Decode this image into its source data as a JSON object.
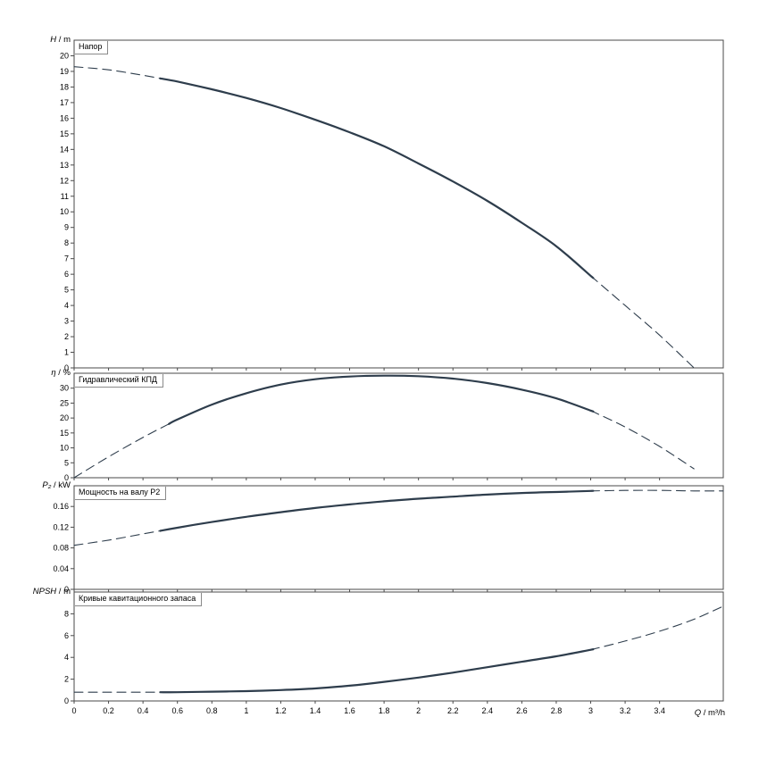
{
  "style": {
    "background": "#ffffff",
    "curve_color": "#2e3d4c",
    "axis_color": "#4a4a4a",
    "label_box_border": "#8a8a8a"
  },
  "x_axis": {
    "label_sym": "Q",
    "label_unit": " / m³/h",
    "xlim": [
      0,
      3.77
    ],
    "ticks": [
      0,
      0.2,
      0.4,
      0.6,
      0.8,
      1,
      1.2,
      1.4,
      1.6,
      1.8,
      2,
      2.2,
      2.4,
      2.6,
      2.8,
      3,
      3.2,
      3.4
    ]
  },
  "chart_data": [
    {
      "type": "line",
      "name": "head",
      "title": "Напор",
      "ylabel_sym": "H",
      "ylabel_unit": " / m",
      "ylim": [
        0,
        21
      ],
      "yticks": [
        0,
        1,
        2,
        3,
        4,
        5,
        6,
        7,
        8,
        9,
        10,
        11,
        12,
        13,
        14,
        15,
        16,
        17,
        18,
        19,
        20
      ],
      "grid": false,
      "series": [
        {
          "name": "H(Q)",
          "solid_range": [
            0.5,
            3.0
          ],
          "x": [
            0,
            0.2,
            0.4,
            0.6,
            0.8,
            1,
            1.2,
            1.4,
            1.6,
            1.8,
            2,
            2.2,
            2.4,
            2.6,
            2.8,
            3,
            3.2,
            3.4,
            3.6
          ],
          "y": [
            19.3,
            19.1,
            18.75,
            18.35,
            17.85,
            17.3,
            16.65,
            15.9,
            15.1,
            14.2,
            13.1,
            11.95,
            10.7,
            9.3,
            7.8,
            5.9,
            4.0,
            2.1,
            0
          ]
        }
      ]
    },
    {
      "type": "line",
      "name": "efficiency",
      "title": "Гидравлический КПД",
      "ylabel_sym": "η",
      "ylabel_unit": " / %",
      "ylim": [
        0,
        35
      ],
      "yticks": [
        0,
        5,
        10,
        15,
        20,
        25,
        30
      ],
      "grid": false,
      "series": [
        {
          "name": "eta(Q)",
          "solid_range": [
            0.55,
            3.0
          ],
          "x": [
            0,
            0.2,
            0.4,
            0.6,
            0.8,
            1,
            1.2,
            1.4,
            1.6,
            1.8,
            2,
            2.2,
            2.4,
            2.6,
            2.8,
            3,
            3.2,
            3.4,
            3.6
          ],
          "y": [
            0,
            7,
            13.5,
            19.5,
            24.5,
            28.3,
            31.2,
            33,
            33.9,
            34.2,
            34,
            33.2,
            31.7,
            29.5,
            26.6,
            22.5,
            17,
            10.5,
            3
          ]
        }
      ]
    },
    {
      "type": "line",
      "name": "power",
      "title": "Мощность на валу P2",
      "ylabel_sym": "P₂",
      "ylabel_unit": " / kW",
      "ylim": [
        0,
        0.2
      ],
      "yticks": [
        0,
        0.04,
        0.08,
        0.12,
        0.16
      ],
      "grid": false,
      "series": [
        {
          "name": "P2(Q)",
          "solid_range": [
            0.5,
            3.0
          ],
          "x": [
            0,
            0.2,
            0.4,
            0.6,
            0.8,
            1,
            1.2,
            1.4,
            1.6,
            1.8,
            2,
            2.2,
            2.4,
            2.6,
            2.8,
            3,
            3.2,
            3.4,
            3.6,
            3.77
          ],
          "y": [
            0.085,
            0.095,
            0.107,
            0.119,
            0.13,
            0.14,
            0.149,
            0.157,
            0.164,
            0.17,
            0.175,
            0.179,
            0.183,
            0.186,
            0.188,
            0.19,
            0.191,
            0.191,
            0.19,
            0.19
          ]
        }
      ]
    },
    {
      "type": "line",
      "name": "npsh",
      "title": "Кривые кавитационного запаса",
      "ylabel_sym": "NPSH",
      "ylabel_unit": " / m",
      "ylim": [
        0,
        10
      ],
      "yticks": [
        0,
        2,
        4,
        6,
        8
      ],
      "grid": false,
      "series": [
        {
          "name": "NPSH(Q)",
          "solid_range": [
            0.5,
            3.0
          ],
          "x": [
            0,
            0.2,
            0.4,
            0.6,
            0.8,
            1,
            1.2,
            1.4,
            1.6,
            1.8,
            2,
            2.2,
            2.4,
            2.6,
            2.8,
            3,
            3.2,
            3.4,
            3.6,
            3.77
          ],
          "y": [
            0.8,
            0.8,
            0.8,
            0.8,
            0.85,
            0.9,
            1.0,
            1.15,
            1.4,
            1.75,
            2.15,
            2.6,
            3.1,
            3.6,
            4.1,
            4.7,
            5.5,
            6.4,
            7.5,
            8.7
          ]
        }
      ]
    }
  ]
}
